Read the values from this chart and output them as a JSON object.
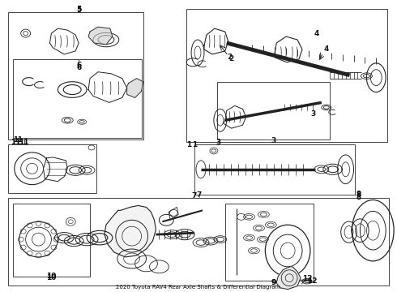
{
  "title": "2020 Toyota RAV4 Rear Axle Shafts & Differential Diagram",
  "bg_color": "#ffffff",
  "lc": "#222222",
  "bc": "#444444",
  "lbl": "#111111",
  "figw": 4.9,
  "figh": 3.6,
  "dpi": 100
}
